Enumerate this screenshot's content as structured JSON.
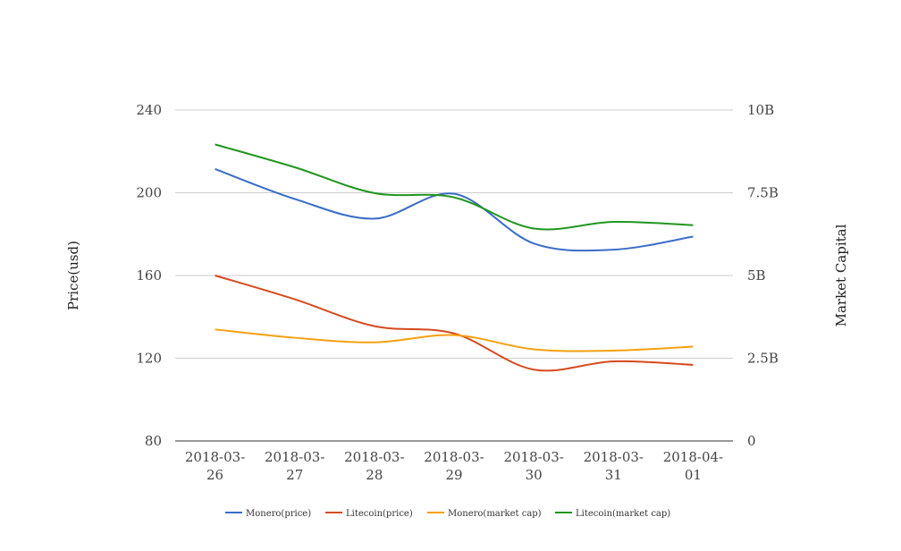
{
  "chart_data": {
    "type": "line",
    "categories": [
      "2018-03-26",
      "2018-03-27",
      "2018-03-28",
      "2018-03-29",
      "2018-03-30",
      "2018-03-31",
      "2018-04-01"
    ],
    "category_lines": [
      [
        "2018-03-",
        "26"
      ],
      [
        "2018-03-",
        "27"
      ],
      [
        "2018-03-",
        "28"
      ],
      [
        "2018-03-",
        "29"
      ],
      [
        "2018-03-",
        "30"
      ],
      [
        "2018-03-",
        "31"
      ],
      [
        "2018-04-",
        "01"
      ]
    ],
    "y_left": {
      "label": "Price(usd)",
      "range": [
        80,
        240
      ],
      "ticks": [
        80,
        120,
        160,
        200,
        240
      ],
      "tick_labels": [
        "80",
        "120",
        "160",
        "200",
        "240"
      ]
    },
    "y_right": {
      "label": "Market Capital",
      "range": [
        0,
        10000000000
      ],
      "ticks": [
        0,
        2500000000,
        5000000000,
        7500000000,
        10000000000
      ],
      "tick_labels": [
        "0",
        "2.5B",
        "5B",
        "7.5B",
        "10B"
      ]
    },
    "grid": true,
    "legend_position": "bottom",
    "series": [
      {
        "name": "Monero(price)",
        "axis": "left",
        "color": "#3a6cc6",
        "values": [
          211.5,
          197,
          187.5,
          199.5,
          175.5,
          172.5,
          178.8
        ]
      },
      {
        "name": "Litecoin(price)",
        "axis": "left",
        "color": "#d64a1e",
        "values": [
          160,
          148.5,
          135.5,
          132,
          114.5,
          118.5,
          116.8
        ]
      },
      {
        "name": "Monero(market cap)",
        "axis": "right",
        "color": "#f5a00f",
        "values": [
          3370000000,
          3120000000,
          2980000000,
          3200000000,
          2770000000,
          2730000000,
          2850000000
        ]
      },
      {
        "name": "Litecoin(market cap)",
        "axis": "right",
        "color": "#20961e",
        "values": [
          8960000000,
          8270000000,
          7490000000,
          7360000000,
          6420000000,
          6620000000,
          6520000000
        ]
      }
    ]
  }
}
